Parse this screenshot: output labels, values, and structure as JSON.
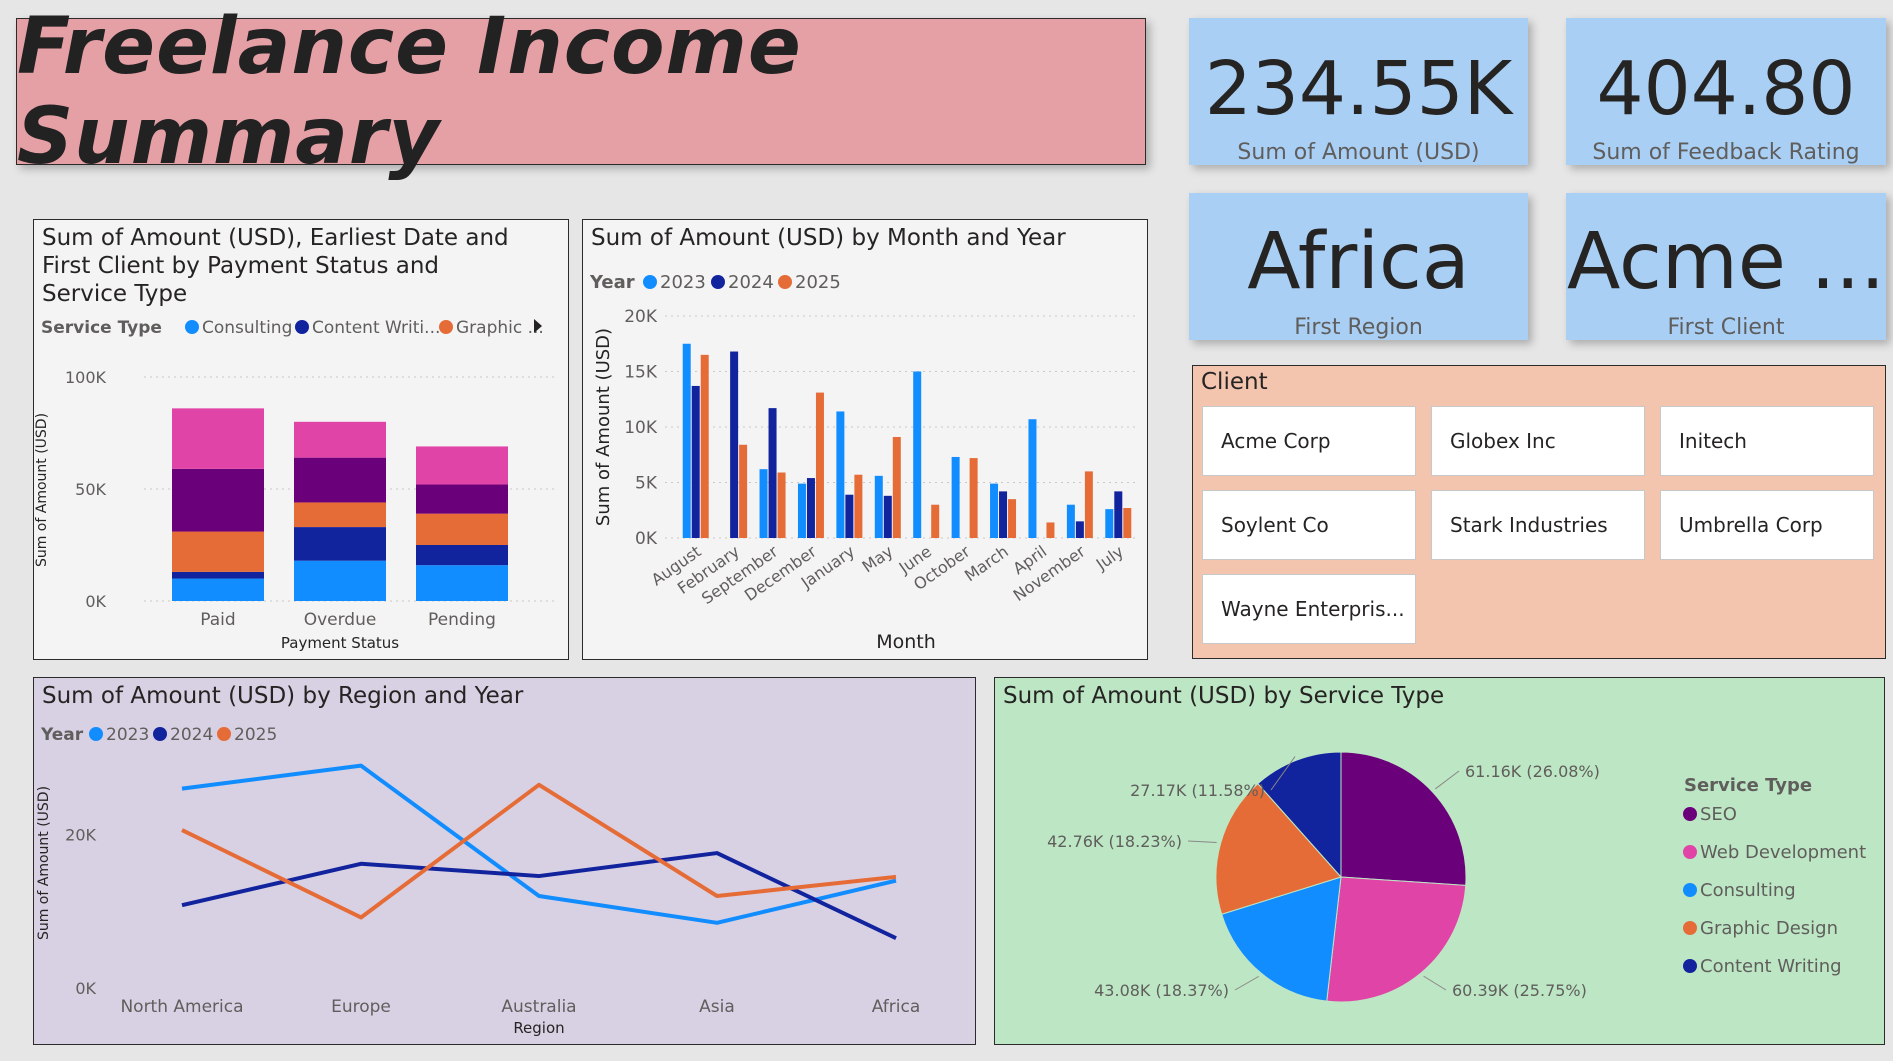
{
  "header": {
    "title": "Freelance Income Summary"
  },
  "kpis": [
    {
      "value": "234.55K",
      "label": "Sum of Amount (USD)"
    },
    {
      "value": "404.80",
      "label": "Sum of Feedback Rating"
    },
    {
      "value": "Africa",
      "label": "First Region"
    },
    {
      "value": "Acme ...",
      "label": "First Client"
    }
  ],
  "client_slicer": {
    "title": "Client",
    "items": [
      "Acme Corp",
      "Globex Inc",
      "Initech",
      "Soylent Co",
      "Stark Industries",
      "Umbrella Corp",
      "Wayne Enterpris..."
    ]
  },
  "colors": {
    "c2023": "#118dff",
    "c2024": "#12239e",
    "c2025": "#e66c37",
    "seo": "#6b007b",
    "webdev": "#e044a7",
    "consulting": "#118dff",
    "graphic": "#e66c37",
    "content": "#12239e"
  },
  "chart_data": [
    {
      "type": "bar",
      "stacked": true,
      "title_lines": [
        "Sum of Amount (USD), Earliest Date and",
        "First Client by Payment Status and",
        "Service Type"
      ],
      "legend_title": "Service Type",
      "legend": [
        "Consulting",
        "Content Writi...",
        "Graphic ..."
      ],
      "categories": [
        "Paid",
        "Overdue",
        "Pending"
      ],
      "xlabel": "Payment Status",
      "ylabel": "Sum of Amount (USD)",
      "yticks": [
        "0K",
        "50K",
        "100K"
      ],
      "ylim": [
        0,
        100000
      ],
      "series": [
        {
          "name": "Consulting",
          "values": [
            10000,
            18000,
            16000
          ]
        },
        {
          "name": "Content Writing",
          "values": [
            3000,
            15000,
            9000
          ]
        },
        {
          "name": "Graphic Design",
          "values": [
            18000,
            11000,
            14000
          ]
        },
        {
          "name": "SEO",
          "values": [
            28000,
            20000,
            13000
          ]
        },
        {
          "name": "Web Development",
          "values": [
            27000,
            16000,
            17000
          ]
        }
      ]
    },
    {
      "type": "bar",
      "title": "Sum of Amount (USD) by Month and Year",
      "legend_title": "Year",
      "categories": [
        "August",
        "February",
        "September",
        "December",
        "January",
        "May",
        "June",
        "October",
        "March",
        "April",
        "November",
        "July"
      ],
      "xlabel": "Month",
      "ylabel": "Sum of Amount (USD)",
      "yticks": [
        "0K",
        "5K",
        "10K",
        "15K",
        "20K"
      ],
      "ylim": [
        0,
        20000
      ],
      "series": [
        {
          "name": "2023",
          "values": [
            17500,
            0,
            6200,
            4900,
            11400,
            5600,
            15000,
            7300,
            4900,
            10700,
            3000,
            2600
          ]
        },
        {
          "name": "2024",
          "values": [
            13700,
            16800,
            11700,
            5400,
            3900,
            3800,
            0,
            0,
            4200,
            0,
            1500,
            4200
          ]
        },
        {
          "name": "2025",
          "values": [
            16500,
            8400,
            5900,
            13100,
            5700,
            9100,
            3000,
            7200,
            3500,
            1400,
            6000,
            2700
          ]
        }
      ]
    },
    {
      "type": "line",
      "title": "Sum of Amount (USD) by Region and Year",
      "legend_title": "Year",
      "categories": [
        "North America",
        "Europe",
        "Australia",
        "Asia",
        "Africa"
      ],
      "xlabel": "Region",
      "ylabel": "Sum of Amount (USD)",
      "yticks": [
        "0K",
        "20K"
      ],
      "ylim": [
        0,
        30000
      ],
      "series": [
        {
          "name": "2023",
          "values": [
            26000,
            29000,
            12000,
            8500,
            14000
          ]
        },
        {
          "name": "2024",
          "values": [
            10800,
            16200,
            14600,
            17600,
            6500
          ]
        },
        {
          "name": "2025",
          "values": [
            20600,
            9200,
            26500,
            12000,
            14500
          ]
        }
      ]
    },
    {
      "type": "pie",
      "title": "Sum of Amount (USD) by Service Type",
      "legend_title": "Service Type",
      "slices": [
        {
          "name": "SEO",
          "value": 61160,
          "label": "61.16K (26.08%)"
        },
        {
          "name": "Web Development",
          "value": 60390,
          "label": "60.39K (25.75%)"
        },
        {
          "name": "Consulting",
          "value": 43080,
          "label": "43.08K (18.37%)"
        },
        {
          "name": "Graphic Design",
          "value": 42760,
          "label": "42.76K (18.23%)"
        },
        {
          "name": "Content Writing",
          "value": 27170,
          "label": "27.17K (11.58%)"
        }
      ]
    }
  ]
}
